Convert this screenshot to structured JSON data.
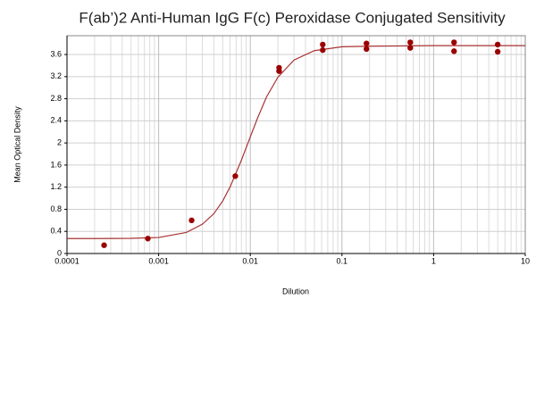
{
  "chart_data": {
    "type": "scatter",
    "title": "F(ab’)2 Anti-Human IgG F(c) Peroxidase Conjugated Sensitivity",
    "xlabel": "Dilution",
    "ylabel": "Mean Optical Density",
    "xscale": "log",
    "grid": true,
    "xlim": [
      0.0001,
      10
    ],
    "xticks": [
      0.0001,
      0.001,
      0.01,
      0.1,
      1,
      10
    ],
    "ylim": [
      0,
      3.94
    ],
    "yticks": [
      0,
      0.4,
      0.8,
      1.2,
      1.6,
      2,
      2.4,
      2.8,
      3.2,
      3.6
    ],
    "points": {
      "color": "#9b0000",
      "x": [
        0.000254,
        0.000762,
        0.00229,
        0.00686,
        0.0206,
        0.0206,
        0.0617,
        0.0617,
        0.185,
        0.185,
        0.556,
        0.556,
        1.67,
        1.67,
        5,
        5
      ],
      "values": [
        0.15,
        0.27,
        0.6,
        1.4,
        3.3,
        3.36,
        3.78,
        3.68,
        3.8,
        3.7,
        3.82,
        3.72,
        3.82,
        3.66,
        3.78,
        3.65
      ]
    },
    "curve": {
      "color": "#a83232",
      "x": [
        0.0001,
        0.0002,
        0.0005,
        0.001,
        0.002,
        0.003,
        0.004,
        0.005,
        0.006,
        0.008,
        0.01,
        0.012,
        0.015,
        0.02,
        0.03,
        0.05,
        0.1,
        0.2,
        1,
        10
      ],
      "values": [
        0.27,
        0.27,
        0.275,
        0.29,
        0.38,
        0.53,
        0.72,
        0.95,
        1.2,
        1.69,
        2.11,
        2.45,
        2.83,
        3.19,
        3.5,
        3.67,
        3.74,
        3.75,
        3.76,
        3.76
      ]
    }
  }
}
